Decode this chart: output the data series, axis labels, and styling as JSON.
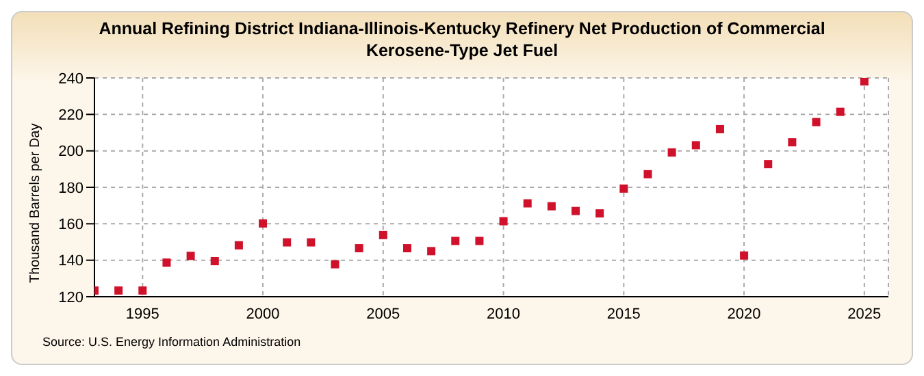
{
  "chart_data": {
    "type": "scatter",
    "title": "Annual Refining District Indiana-Illinois-Kentucky Refinery Net Production of Commercial Kerosene-Type Jet Fuel",
    "ylabel": "Thousand Barrels per Day",
    "annotations": [
      "Source: U.S. Energy Information Administration"
    ],
    "x": [
      1993,
      1994,
      1995,
      1996,
      1997,
      1998,
      1999,
      2000,
      2001,
      2002,
      2003,
      2004,
      2005,
      2006,
      2007,
      2008,
      2009,
      2010,
      2011,
      2012,
      2013,
      2014,
      2015,
      2016,
      2017,
      2018,
      2019,
      2020,
      2021,
      2022,
      2023,
      2024,
      2025
    ],
    "series": [
      {
        "color": "#d0112b",
        "values": [
          123.4,
          123.4,
          123.4,
          138.7,
          142.4,
          139.5,
          148.2,
          160.2,
          149.8,
          149.8,
          137.8,
          146.6,
          153.8,
          146.6,
          145,
          150.6,
          150.6,
          161.4,
          171.2,
          169.6,
          167,
          165.7,
          179.3,
          187.2,
          199.1,
          203.1,
          211.9,
          142.6,
          192.7,
          204.7,
          215.8,
          221.4,
          238.1
        ]
      }
    ],
    "xlim": [
      1993,
      2026
    ],
    "xticks": [
      1995,
      2000,
      2005,
      2010,
      2015,
      2020,
      2025
    ],
    "ylim": [
      120,
      240
    ],
    "yticks": [
      120,
      140,
      160,
      180,
      200,
      220,
      240
    ],
    "grid": true,
    "marker": "square"
  }
}
